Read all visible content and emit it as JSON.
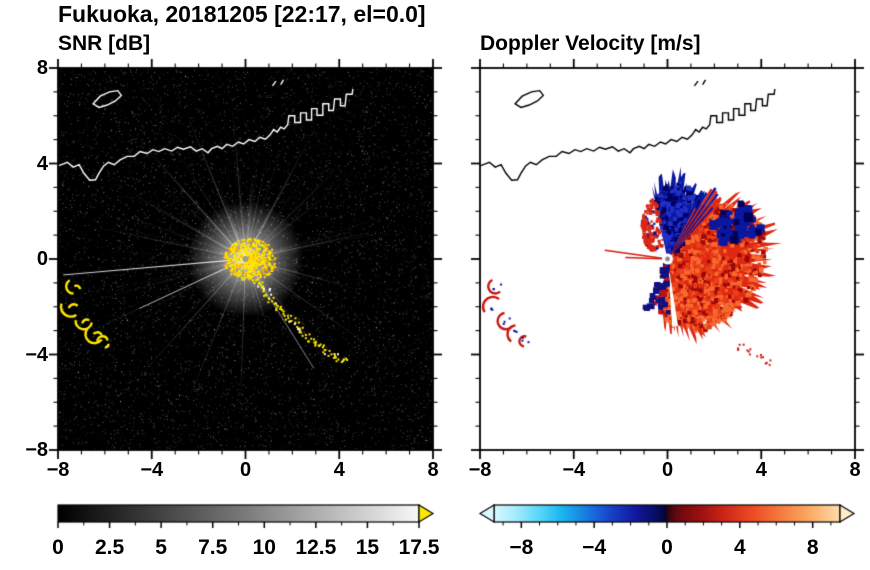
{
  "title": "Fukuoka, 20181205 [22:17, el=0.0]",
  "panels": {
    "snr": {
      "title": "SNR [dB]",
      "x_tick_labels": [
        "−8",
        "−4",
        "0",
        "4",
        "8"
      ],
      "y_tick_labels": [
        "8",
        "4",
        "0",
        "−4",
        "−8"
      ]
    },
    "doppler": {
      "title": "Doppler Velocity [m/s]",
      "x_tick_labels": [
        "−8",
        "−4",
        "0",
        "4",
        "8"
      ]
    }
  },
  "colorbars": {
    "snr": {
      "tick_labels": [
        "0",
        "2.5",
        "5",
        "7.5",
        "10",
        "12.5",
        "15",
        "17.5"
      ],
      "range": [
        0,
        17.5
      ],
      "gradient": [
        [
          0,
          "#000000"
        ],
        [
          0.5,
          "#767676"
        ],
        [
          1,
          "#f8f8f8"
        ]
      ],
      "over_arrow_color": "#ffe800"
    },
    "doppler": {
      "tick_labels": [
        "−8",
        "−4",
        "0",
        "4",
        "8"
      ],
      "range": [
        -9.5,
        9.5
      ],
      "gradient": [
        [
          0,
          "#d8f8ff"
        ],
        [
          0.06,
          "#a8ecfc"
        ],
        [
          0.13,
          "#58d8f8"
        ],
        [
          0.2,
          "#18b4f0"
        ],
        [
          0.27,
          "#1878e0"
        ],
        [
          0.34,
          "#1840c8"
        ],
        [
          0.41,
          "#1018a0"
        ],
        [
          0.47,
          "#080c60"
        ],
        [
          0.497,
          "#04062e"
        ],
        [
          0.503,
          "#38040a"
        ],
        [
          0.53,
          "#6a0810"
        ],
        [
          0.6,
          "#a01010"
        ],
        [
          0.67,
          "#d02818"
        ],
        [
          0.74,
          "#ea4824"
        ],
        [
          0.81,
          "#f47038"
        ],
        [
          0.9,
          "#faa45c"
        ],
        [
          1,
          "#ffdca8"
        ]
      ],
      "under_arrow_color": "#dcf8ff",
      "over_arrow_color": "#ffeec8"
    }
  },
  "chart_data": [
    {
      "type": "heatmap",
      "title": "SNR [dB]",
      "xlim": [
        -8,
        8
      ],
      "ylim": [
        -8,
        8
      ],
      "x_ticks": [
        -8,
        -4,
        0,
        4,
        8
      ],
      "y_ticks": [
        -8,
        -4,
        0,
        4,
        8
      ],
      "minor_tick_step": 1,
      "background": "#000000",
      "colorbar": {
        "label_values": [
          0,
          2.5,
          5,
          7.5,
          10,
          12.5,
          15,
          17.5
        ],
        "range": [
          0,
          17.5
        ],
        "scale": "black-to-white grayscale",
        "over_color": "yellow"
      },
      "radar_center": [
        0,
        0
      ],
      "echo_color": "#ffe800",
      "bright_ray_angles_deg": [
        12,
        38,
        62,
        78,
        95,
        112,
        132,
        150,
        168,
        185,
        205,
        228,
        248,
        268,
        288,
        305,
        325,
        345
      ],
      "coastline": {
        "color": "#ffffff",
        "main": [
          [
            -8,
            3.9
          ],
          [
            -7.6,
            4.05
          ],
          [
            -7.35,
            3.85
          ],
          [
            -7.1,
            3.95
          ],
          [
            -6.9,
            3.6
          ],
          [
            -6.65,
            3.3
          ],
          [
            -6.4,
            3.32
          ],
          [
            -6.25,
            3.6
          ],
          [
            -6.05,
            3.9
          ],
          [
            -5.85,
            4.05
          ],
          [
            -5.6,
            3.95
          ],
          [
            -5.35,
            4.15
          ],
          [
            -5.05,
            4.3
          ],
          [
            -4.75,
            4.3
          ],
          [
            -4.5,
            4.5
          ],
          [
            -4.2,
            4.42
          ],
          [
            -3.95,
            4.58
          ],
          [
            -3.7,
            4.5
          ],
          [
            -3.45,
            4.62
          ],
          [
            -3.15,
            4.52
          ],
          [
            -2.9,
            4.68
          ],
          [
            -2.65,
            4.6
          ],
          [
            -2.35,
            4.7
          ],
          [
            -2.1,
            4.52
          ],
          [
            -1.85,
            4.62
          ],
          [
            -1.6,
            4.45
          ],
          [
            -1.45,
            4.62
          ],
          [
            -1.2,
            4.72
          ],
          [
            -1.0,
            4.62
          ],
          [
            -0.8,
            4.8
          ],
          [
            -0.55,
            4.72
          ],
          [
            -0.3,
            4.9
          ],
          [
            -0.08,
            4.82
          ],
          [
            0.15,
            5.0
          ],
          [
            0.4,
            4.92
          ],
          [
            0.62,
            5.1
          ],
          [
            0.85,
            5.02
          ],
          [
            1.05,
            5.2
          ],
          [
            1.2,
            5.42
          ],
          [
            1.35,
            5.32
          ],
          [
            1.5,
            5.52
          ],
          [
            1.65,
            5.45
          ],
          [
            1.8,
            5.62
          ],
          [
            1.85,
            6.0
          ],
          [
            2.1,
            6.0
          ],
          [
            2.1,
            5.72
          ],
          [
            2.35,
            5.72
          ],
          [
            2.35,
            6.12
          ],
          [
            2.6,
            6.12
          ],
          [
            2.6,
            5.82
          ],
          [
            2.82,
            5.82
          ],
          [
            2.82,
            6.3
          ],
          [
            3.05,
            6.3
          ],
          [
            3.05,
            6.02
          ],
          [
            3.3,
            6.02
          ],
          [
            3.3,
            6.5
          ],
          [
            3.55,
            6.5
          ],
          [
            3.55,
            6.22
          ],
          [
            3.75,
            6.22
          ],
          [
            3.8,
            6.7
          ],
          [
            4.05,
            6.7
          ],
          [
            4.05,
            6.42
          ],
          [
            4.25,
            6.42
          ],
          [
            4.3,
            6.9
          ],
          [
            4.55,
            6.9
          ],
          [
            4.58,
            7.12
          ]
        ],
        "island": [
          [
            -6.5,
            6.5
          ],
          [
            -6.2,
            6.82
          ],
          [
            -5.8,
            7.0
          ],
          [
            -5.45,
            7.05
          ],
          [
            -5.3,
            6.85
          ],
          [
            -5.55,
            6.62
          ],
          [
            -5.9,
            6.45
          ],
          [
            -6.25,
            6.35
          ]
        ],
        "marks": [
          [
            [
              1.15,
              7.25
            ],
            [
              1.3,
              7.45
            ]
          ],
          [
            [
              1.5,
              7.3
            ],
            [
              1.62,
              7.5
            ]
          ]
        ]
      },
      "clutter_trail": [
        [
          0.35,
          -0.75
        ],
        [
          0.7,
          -1.1
        ],
        [
          0.95,
          -1.5
        ],
        [
          1.25,
          -1.85
        ],
        [
          1.6,
          -2.2
        ],
        [
          1.95,
          -2.55
        ],
        [
          2.3,
          -2.9
        ],
        [
          2.7,
          -3.3
        ],
        [
          3.1,
          -3.6
        ],
        [
          3.5,
          -3.85
        ],
        [
          3.9,
          -4.1
        ],
        [
          4.25,
          -4.3
        ]
      ],
      "left_patches": [
        {
          "center": [
            -7.35,
            -1.15
          ],
          "r": 0.3
        },
        {
          "center": [
            -7.45,
            -2.0
          ],
          "r": 0.42
        },
        {
          "center": [
            -6.9,
            -2.6
          ],
          "r": 0.35
        },
        {
          "center": [
            -6.45,
            -3.15
          ],
          "r": 0.38
        },
        {
          "center": [
            -6.1,
            -3.45
          ],
          "r": 0.22
        }
      ]
    },
    {
      "type": "heatmap",
      "title": "Doppler Velocity [m/s]",
      "xlim": [
        -8,
        8
      ],
      "ylim": [
        -8,
        8
      ],
      "x_ticks": [
        -8,
        -4,
        0,
        4,
        8
      ],
      "y_ticks": [
        -8,
        -4,
        0,
        4,
        8
      ],
      "minor_tick_step": 1,
      "background": "#ffffff",
      "colorbar": {
        "label_values": [
          -8,
          -4,
          0,
          4,
          8
        ],
        "range": [
          -9.5,
          9.5
        ],
        "scale": "diverging cyan-blue-navy / dark red-red-orange"
      },
      "coastline_color": "#000000",
      "left_patches_color": "#c81810",
      "echo_zones": {
        "red_fan": {
          "theta_deg": [
            -100,
            55
          ],
          "rmax_anchors": [
            [
              -100,
              2.2
            ],
            [
              -88,
              3.0
            ],
            [
              -70,
              3.5
            ],
            [
              -45,
              3.7
            ],
            [
              -20,
              4.1
            ],
            [
              0,
              4.4
            ],
            [
              20,
              4.5
            ],
            [
              38,
              4.2
            ],
            [
              55,
              2.9
            ]
          ],
          "color": "#df2812"
        },
        "blue_wedge": {
          "theta_deg": [
            53,
            103
          ],
          "rmax_anchors": [
            [
              53,
              2.6
            ],
            [
              65,
              3.2
            ],
            [
              80,
              3.7
            ],
            [
              92,
              3.5
            ],
            [
              103,
              2.9
            ]
          ],
          "color": "#0a18a0"
        },
        "upper_left_speckles": {
          "theta_deg": [
            102,
            150
          ],
          "rmax": [
            2.9,
            1.0
          ],
          "color": "#d82818"
        },
        "blue_patch_in_red": {
          "theta_deg": [
            15,
            38
          ],
          "r": [
            2.4,
            4.2
          ],
          "color": "#0a18a0"
        },
        "bottom_navy": {
          "theta_deg": [
            -116,
            -88
          ],
          "r": [
            0.3,
            2.3
          ],
          "color": "#101080"
        },
        "thin_rays": [
          {
            "theta_deg": 172,
            "r": 2.7
          },
          {
            "theta_deg": 178,
            "r": 1.8
          }
        ]
      }
    }
  ]
}
